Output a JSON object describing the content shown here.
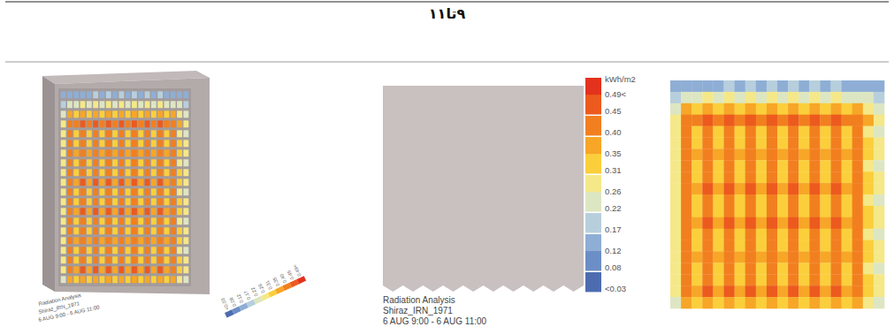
{
  "header": {
    "title": "۹تا۱۱"
  },
  "chart_data": {
    "type": "heatmap",
    "title": "Radiation Analysis",
    "subtitle": "Shiraz_IRN_1971",
    "annotations": [
      "6 AUG 9:00 - 6 AUG 11:00"
    ],
    "tick_labels": false,
    "cells": [
      [
        0.1,
        0.12,
        0.13,
        0.14,
        0.14,
        0.15,
        0.14,
        0.15,
        0.14,
        0.15,
        0.14,
        0.15,
        0.14,
        0.15,
        0.14,
        0.15,
        0.14,
        0.13,
        0.12,
        0.1
      ],
      [
        0.17,
        0.22,
        0.24,
        0.26,
        0.24,
        0.26,
        0.24,
        0.26,
        0.24,
        0.26,
        0.24,
        0.26,
        0.24,
        0.26,
        0.24,
        0.26,
        0.24,
        0.22,
        0.2,
        0.17
      ],
      [
        0.24,
        0.33,
        0.3,
        0.35,
        0.3,
        0.35,
        0.31,
        0.35,
        0.3,
        0.35,
        0.31,
        0.35,
        0.3,
        0.35,
        0.31,
        0.35,
        0.3,
        0.33,
        0.28,
        0.24
      ],
      [
        0.26,
        0.42,
        0.4,
        0.44,
        0.4,
        0.44,
        0.41,
        0.44,
        0.4,
        0.44,
        0.41,
        0.44,
        0.4,
        0.44,
        0.41,
        0.44,
        0.4,
        0.42,
        0.36,
        0.26
      ],
      [
        0.26,
        0.38,
        0.29,
        0.4,
        0.29,
        0.4,
        0.3,
        0.4,
        0.29,
        0.4,
        0.3,
        0.4,
        0.29,
        0.4,
        0.3,
        0.4,
        0.29,
        0.38,
        0.28,
        0.24
      ],
      [
        0.27,
        0.4,
        0.31,
        0.42,
        0.31,
        0.42,
        0.31,
        0.42,
        0.31,
        0.42,
        0.31,
        0.42,
        0.31,
        0.42,
        0.31,
        0.42,
        0.31,
        0.4,
        0.29,
        0.25
      ],
      [
        0.27,
        0.4,
        0.36,
        0.42,
        0.36,
        0.42,
        0.37,
        0.42,
        0.36,
        0.42,
        0.37,
        0.42,
        0.36,
        0.42,
        0.37,
        0.42,
        0.36,
        0.4,
        0.32,
        0.25
      ],
      [
        0.26,
        0.39,
        0.3,
        0.41,
        0.3,
        0.41,
        0.3,
        0.41,
        0.3,
        0.41,
        0.3,
        0.41,
        0.3,
        0.41,
        0.3,
        0.41,
        0.3,
        0.39,
        0.28,
        0.24
      ],
      [
        0.27,
        0.4,
        0.31,
        0.42,
        0.32,
        0.42,
        0.31,
        0.42,
        0.32,
        0.42,
        0.31,
        0.42,
        0.32,
        0.42,
        0.31,
        0.42,
        0.32,
        0.4,
        0.29,
        0.25
      ],
      [
        0.27,
        0.41,
        0.37,
        0.43,
        0.36,
        0.43,
        0.37,
        0.43,
        0.36,
        0.43,
        0.37,
        0.43,
        0.36,
        0.43,
        0.37,
        0.43,
        0.36,
        0.41,
        0.32,
        0.25
      ],
      [
        0.26,
        0.39,
        0.29,
        0.41,
        0.3,
        0.41,
        0.29,
        0.41,
        0.3,
        0.41,
        0.29,
        0.41,
        0.3,
        0.41,
        0.29,
        0.41,
        0.3,
        0.39,
        0.28,
        0.24
      ],
      [
        0.27,
        0.4,
        0.31,
        0.42,
        0.31,
        0.42,
        0.32,
        0.42,
        0.31,
        0.42,
        0.32,
        0.42,
        0.31,
        0.42,
        0.32,
        0.42,
        0.31,
        0.4,
        0.29,
        0.25
      ],
      [
        0.27,
        0.41,
        0.36,
        0.43,
        0.37,
        0.43,
        0.36,
        0.43,
        0.37,
        0.43,
        0.36,
        0.43,
        0.37,
        0.43,
        0.36,
        0.43,
        0.37,
        0.41,
        0.32,
        0.25
      ],
      [
        0.26,
        0.38,
        0.29,
        0.4,
        0.3,
        0.4,
        0.29,
        0.4,
        0.3,
        0.4,
        0.29,
        0.4,
        0.3,
        0.4,
        0.29,
        0.4,
        0.3,
        0.38,
        0.28,
        0.24
      ],
      [
        0.27,
        0.4,
        0.31,
        0.42,
        0.31,
        0.42,
        0.31,
        0.42,
        0.31,
        0.42,
        0.31,
        0.42,
        0.31,
        0.42,
        0.31,
        0.42,
        0.31,
        0.4,
        0.29,
        0.25
      ],
      [
        0.27,
        0.4,
        0.36,
        0.42,
        0.37,
        0.42,
        0.36,
        0.42,
        0.37,
        0.42,
        0.36,
        0.42,
        0.37,
        0.42,
        0.36,
        0.42,
        0.37,
        0.4,
        0.32,
        0.25
      ],
      [
        0.26,
        0.39,
        0.3,
        0.41,
        0.29,
        0.41,
        0.3,
        0.41,
        0.29,
        0.41,
        0.3,
        0.41,
        0.29,
        0.41,
        0.3,
        0.41,
        0.29,
        0.39,
        0.28,
        0.24
      ],
      [
        0.27,
        0.4,
        0.32,
        0.42,
        0.31,
        0.42,
        0.32,
        0.42,
        0.31,
        0.42,
        0.32,
        0.42,
        0.31,
        0.42,
        0.32,
        0.42,
        0.31,
        0.4,
        0.29,
        0.25
      ],
      [
        0.27,
        0.41,
        0.36,
        0.43,
        0.37,
        0.43,
        0.36,
        0.43,
        0.37,
        0.43,
        0.36,
        0.43,
        0.37,
        0.43,
        0.36,
        0.43,
        0.37,
        0.41,
        0.32,
        0.25
      ],
      [
        0.24,
        0.35,
        0.29,
        0.37,
        0.29,
        0.37,
        0.29,
        0.37,
        0.29,
        0.37,
        0.29,
        0.37,
        0.29,
        0.37,
        0.29,
        0.37,
        0.29,
        0.35,
        0.27,
        0.22
      ]
    ],
    "colorbar": {
      "title": "kWh/m2",
      "range": [
        0.03,
        0.49
      ],
      "ticks": [
        {
          "value": 0.49,
          "label": "0.49<"
        },
        0.45,
        {
          "value": 0.4,
          "label": "0.40"
        },
        0.35,
        0.31,
        0.26,
        0.22,
        0.17,
        0.12,
        0.08,
        {
          "value": 0.03,
          "label": "<0.03"
        }
      ],
      "colors": [
        "#e3321d",
        "#ec5a1e",
        "#f27f1f",
        "#f7a627",
        "#fbcf3c",
        "#f5e888",
        "#dde6c2",
        "#b7cfdd",
        "#8eaed5",
        "#6c8ec6",
        "#4d6cb0"
      ]
    }
  }
}
